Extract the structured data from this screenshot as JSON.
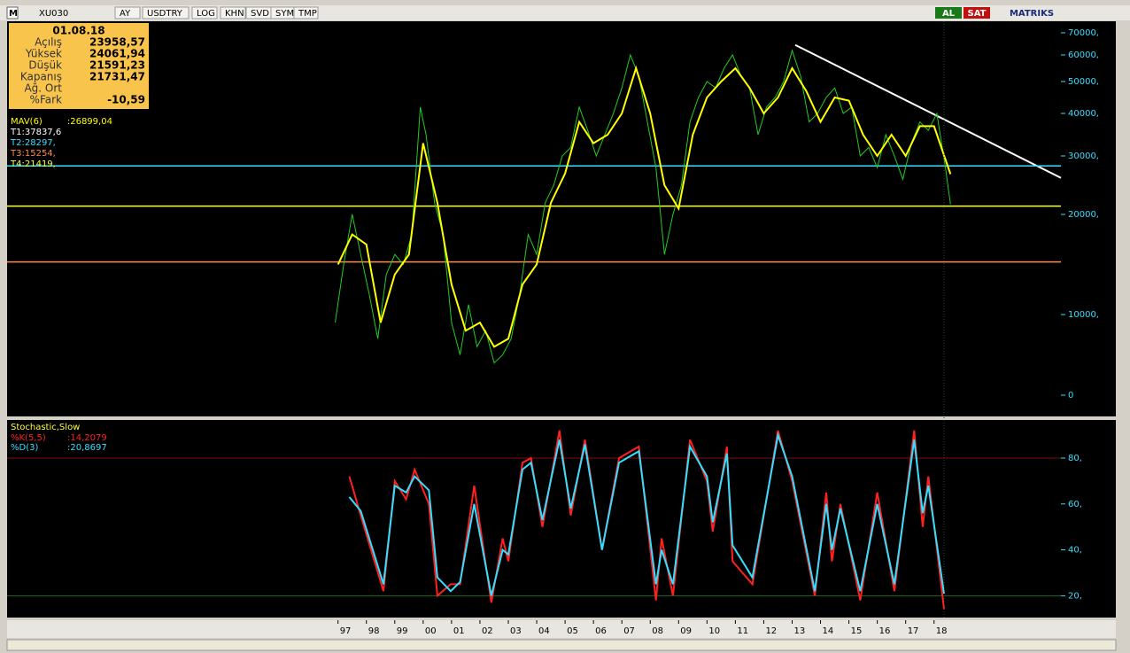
{
  "toolbar": {
    "logo": "M",
    "symbol": "XU030",
    "buttons": [
      "AY",
      "USDTRY",
      "LOG",
      "KHN",
      "SVD",
      "SYM",
      "TMP"
    ],
    "buy": "AL",
    "sell": "SAT",
    "brand": "MATRIKS"
  },
  "info": {
    "date": "01.08.18",
    "rows": [
      {
        "label": "Açılış",
        "value": "23958,57"
      },
      {
        "label": "Yüksek",
        "value": "24061,94"
      },
      {
        "label": "Düşük",
        "value": "21591,23"
      },
      {
        "label": "Kapanış",
        "value": "21731,47"
      },
      {
        "label": "Ağ. Ort"
      },
      {
        "label": "%Fark",
        "value": "-10,59"
      }
    ]
  },
  "chart_data": [
    {
      "type": "line",
      "indicators": [
        {
          "name": "MAV(6)",
          "value": 26899.04,
          "value_label": ":26899,04",
          "color": "#ffff00"
        },
        {
          "name": "T1",
          "value": 37837.6,
          "value_label": ":37837,6",
          "color": "#ffffff"
        },
        {
          "name": "T2",
          "value": 28297,
          "value_label": ":28297,",
          "color": "#33e0ff"
        },
        {
          "name": "T3",
          "value": 15254,
          "value_label": ":15254,",
          "color": "#ff8c3a"
        },
        {
          "name": "T4",
          "value": 21419,
          "value_label": ":21419,",
          "color": "#ffff33"
        }
      ],
      "xlim": [
        1985.34,
        2022.47
      ],
      "xticks": [
        {
          "value": 1997,
          "label": "97"
        },
        {
          "value": 1998,
          "label": "98"
        },
        {
          "value": 1999,
          "label": "99"
        },
        {
          "value": 2000,
          "label": "00"
        },
        {
          "value": 2001,
          "label": "01"
        },
        {
          "value": 2002,
          "label": "02"
        },
        {
          "value": 2003,
          "label": "03"
        },
        {
          "value": 2004,
          "label": "04"
        },
        {
          "value": 2005,
          "label": "05"
        },
        {
          "value": 2006,
          "label": "06"
        },
        {
          "value": 2007,
          "label": "07"
        },
        {
          "value": 2008,
          "label": "08"
        },
        {
          "value": 2009,
          "label": "09"
        },
        {
          "value": 2010,
          "label": "10"
        },
        {
          "value": 2011,
          "label": "11"
        },
        {
          "value": 2012,
          "label": "12"
        },
        {
          "value": 2013,
          "label": "13"
        },
        {
          "value": 2014,
          "label": "14"
        },
        {
          "value": 2015,
          "label": "15"
        },
        {
          "value": 2016,
          "label": "16"
        },
        {
          "value": 2017,
          "label": "17"
        },
        {
          "value": 2018,
          "label": "18"
        }
      ],
      "ylim": [
        0,
        70000
      ],
      "yticks": [
        0,
        {
          "value": 10000,
          "label": "10000,"
        },
        {
          "value": 20000,
          "label": "20000,"
        },
        {
          "value": 30000,
          "label": "30000,"
        },
        {
          "value": 40000,
          "label": "40000,"
        },
        {
          "value": 50000,
          "label": "50000,"
        },
        {
          "value": 60000,
          "label": "60000,"
        },
        {
          "value": 70000,
          "label": "70000,"
        }
      ],
      "series": [
        {
          "name": "XU030",
          "color": "#22cc22",
          "x": [
            1996.9,
            1997.2,
            1997.5,
            1997.8,
            1998.1,
            1998.4,
            1998.7,
            1999.0,
            1999.3,
            1999.6,
            1999.9,
            2000.1,
            2000.4,
            2000.7,
            2001.0,
            2001.3,
            2001.6,
            2001.9,
            2002.2,
            2002.5,
            2002.8,
            2003.1,
            2003.4,
            2003.7,
            2004.0,
            2004.3,
            2004.6,
            2004.9,
            2005.2,
            2005.5,
            2005.8,
            2006.1,
            2006.4,
            2006.7,
            2007.0,
            2007.3,
            2007.6,
            2007.9,
            2008.2,
            2008.5,
            2008.8,
            2009.1,
            2009.4,
            2009.7,
            2010.0,
            2010.3,
            2010.6,
            2010.9,
            2011.2,
            2011.5,
            2011.8,
            2012.1,
            2012.4,
            2012.7,
            2013.0,
            2013.3,
            2013.6,
            2013.9,
            2014.2,
            2014.5,
            2014.8,
            2015.1,
            2015.4,
            2015.7,
            2016.0,
            2016.3,
            2016.6,
            2016.9,
            2017.2,
            2017.5,
            2017.8,
            2018.1,
            2018.4,
            2018.58
          ],
          "values": [
            9000,
            15000,
            20000,
            16000,
            12000,
            7000,
            14000,
            16000,
            15000,
            18000,
            42000,
            35000,
            22000,
            18000,
            9000,
            5000,
            11000,
            6000,
            8000,
            4000,
            5000,
            7000,
            12000,
            18000,
            16000,
            22000,
            25000,
            30000,
            32000,
            42000,
            36000,
            30000,
            35000,
            40000,
            48000,
            60000,
            52000,
            38000,
            28000,
            16000,
            20000,
            25000,
            38000,
            45000,
            50000,
            48000,
            55000,
            60000,
            52000,
            48000,
            35000,
            42000,
            45000,
            50000,
            62000,
            52000,
            38000,
            40000,
            45000,
            48000,
            40000,
            42000,
            30000,
            32000,
            28000,
            35000,
            30000,
            26000,
            33000,
            38000,
            36000,
            40000,
            28000,
            21731
          ]
        },
        {
          "name": "MAV(6)",
          "color": "#ffff00",
          "x": [
            1997.0,
            1997.5,
            1998.0,
            1998.5,
            1999.0,
            1999.5,
            2000.0,
            2000.5,
            2001.0,
            2001.5,
            2002.0,
            2002.5,
            2003.0,
            2003.5,
            2004.0,
            2004.5,
            2005.0,
            2005.5,
            2006.0,
            2006.5,
            2007.0,
            2007.5,
            2008.0,
            2008.5,
            2009.0,
            2009.5,
            2010.0,
            2010.5,
            2011.0,
            2011.5,
            2012.0,
            2012.5,
            2013.0,
            2013.5,
            2014.0,
            2014.5,
            2015.0,
            2015.5,
            2016.0,
            2016.5,
            2017.0,
            2017.5,
            2018.0,
            2018.58
          ],
          "values": [
            15000,
            18000,
            17000,
            9000,
            14000,
            16000,
            33000,
            22000,
            13000,
            8000,
            9000,
            6000,
            7000,
            13000,
            15000,
            22000,
            27000,
            38000,
            33000,
            35000,
            40000,
            55000,
            40000,
            25000,
            21000,
            35000,
            45000,
            50000,
            55000,
            48000,
            40000,
            45000,
            55000,
            47000,
            38000,
            45000,
            44000,
            35000,
            30000,
            35000,
            30000,
            37000,
            37000,
            26899.04
          ]
        }
      ]
    },
    {
      "type": "line",
      "title": "Stochastic,Slow",
      "xlim": [
        1985.34,
        2022.47
      ],
      "ylim": [
        10.5,
        96.6
      ],
      "yticks": [
        {
          "value": 20,
          "label": "20,"
        },
        {
          "value": 40,
          "label": "40,"
        },
        {
          "value": 60,
          "label": "60,"
        },
        {
          "value": 80,
          "label": "80,"
        }
      ],
      "bands": [
        80,
        20
      ],
      "series": [
        {
          "name": "%K(5,5)",
          "value_label": ":14,2079",
          "color": "#ff2020",
          "x": [
            1997.4,
            1997.8,
            1998.6,
            1999.0,
            1999.4,
            1999.7,
            2000.2,
            2000.5,
            2000.97,
            2001.3,
            2001.8,
            2002.4,
            2002.8,
            2003.0,
            2003.5,
            2003.8,
            2004.2,
            2004.8,
            2005.2,
            2005.7,
            2006.3,
            2006.9,
            2007.6,
            2008.2,
            2008.4,
            2008.8,
            2009.4,
            2010.0,
            2010.2,
            2010.7,
            2010.9,
            2011.6,
            2012.5,
            2013.0,
            2013.8,
            2014.2,
            2014.4,
            2014.7,
            2015.4,
            2016.0,
            2016.6,
            2017.3,
            2017.6,
            2017.8,
            2018.35
          ],
          "values": [
            72,
            55,
            22,
            70,
            62,
            75,
            60,
            20,
            25,
            25,
            68,
            17,
            45,
            35,
            78,
            80,
            50,
            92,
            55,
            88,
            40,
            80,
            85,
            18,
            45,
            20,
            88,
            70,
            48,
            85,
            35,
            25,
            92,
            70,
            20,
            65,
            35,
            60,
            18,
            65,
            22,
            92,
            50,
            72,
            14.2079
          ]
        },
        {
          "name": "%D(3)",
          "value_label": ":20,8697",
          "color": "#33dfff",
          "x": [
            1997.4,
            1997.8,
            1998.6,
            1999.0,
            1999.4,
            1999.7,
            2000.2,
            2000.5,
            2000.97,
            2001.3,
            2001.8,
            2002.4,
            2002.8,
            2003.0,
            2003.5,
            2003.8,
            2004.2,
            2004.8,
            2005.2,
            2005.7,
            2006.3,
            2006.9,
            2007.6,
            2008.2,
            2008.4,
            2008.8,
            2009.4,
            2010.0,
            2010.2,
            2010.7,
            2010.9,
            2011.6,
            2012.5,
            2013.0,
            2013.8,
            2014.2,
            2014.4,
            2014.7,
            2015.4,
            2016.0,
            2016.6,
            2017.3,
            2017.6,
            2017.8,
            2018.35
          ],
          "values": [
            63,
            57,
            25,
            68,
            65,
            72,
            66,
            28,
            22,
            26,
            60,
            20,
            40,
            38,
            75,
            78,
            53,
            88,
            58,
            86,
            40,
            78,
            83,
            25,
            40,
            25,
            85,
            72,
            52,
            82,
            42,
            28,
            90,
            72,
            22,
            60,
            40,
            58,
            22,
            60,
            25,
            88,
            56,
            68,
            20.8697
          ]
        }
      ]
    }
  ]
}
